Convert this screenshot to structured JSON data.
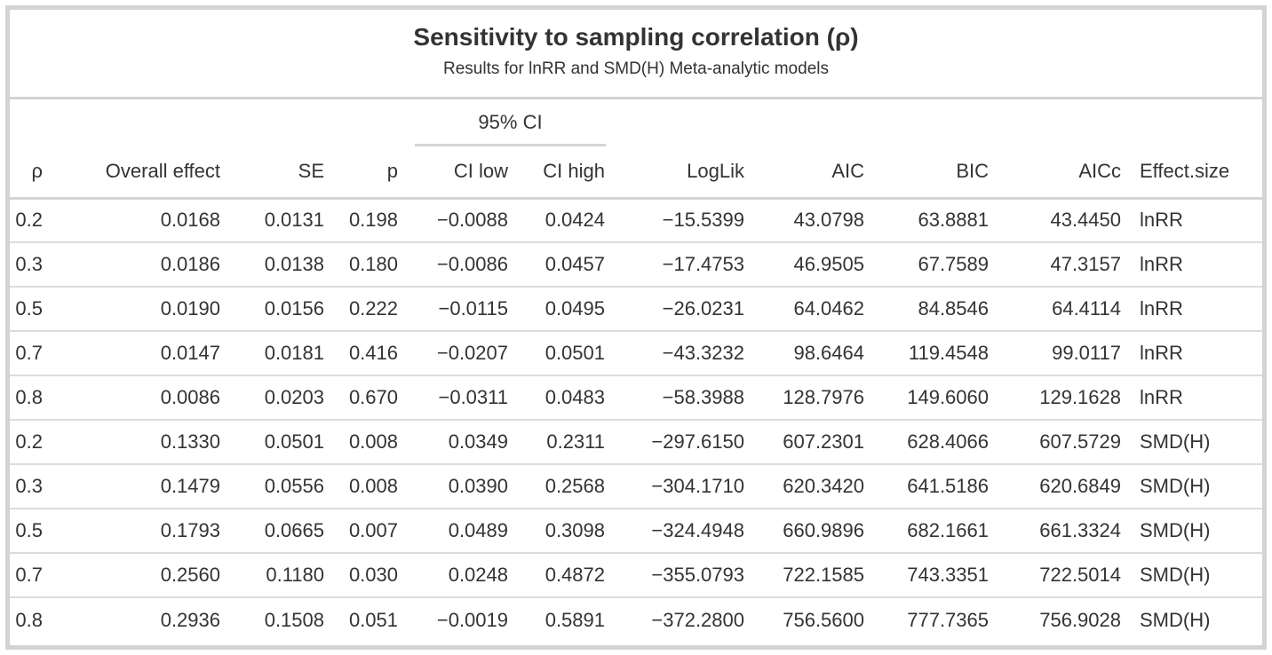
{
  "chart_data": {
    "type": "table",
    "title": "Sensitivity to sampling correlation (ρ)",
    "subtitle": "Results for lnRR and SMD(H) Meta-analytic models",
    "spanner": {
      "label": "95% CI",
      "over_columns": [
        "CI low",
        "CI high"
      ]
    },
    "columns": [
      "ρ",
      "Overall effect",
      "SE",
      "p",
      "CI low",
      "CI high",
      "LogLik",
      "AIC",
      "BIC",
      "AICc",
      "Effect.size"
    ],
    "column_keys": [
      "rho",
      "overall-effect",
      "se",
      "p",
      "ci-low",
      "ci-high",
      "loglik",
      "aic",
      "bic",
      "aicc",
      "effect-size"
    ],
    "rows": [
      [
        "0.2",
        "0.0168",
        "0.0131",
        "0.198",
        "−0.0088",
        "0.0424",
        "−15.5399",
        "43.0798",
        "63.8881",
        "43.4450",
        "lnRR"
      ],
      [
        "0.3",
        "0.0186",
        "0.0138",
        "0.180",
        "−0.0086",
        "0.0457",
        "−17.4753",
        "46.9505",
        "67.7589",
        "47.3157",
        "lnRR"
      ],
      [
        "0.5",
        "0.0190",
        "0.0156",
        "0.222",
        "−0.0115",
        "0.0495",
        "−26.0231",
        "64.0462",
        "84.8546",
        "64.4114",
        "lnRR"
      ],
      [
        "0.7",
        "0.0147",
        "0.0181",
        "0.416",
        "−0.0207",
        "0.0501",
        "−43.3232",
        "98.6464",
        "119.4548",
        "99.0117",
        "lnRR"
      ],
      [
        "0.8",
        "0.0086",
        "0.0203",
        "0.670",
        "−0.0311",
        "0.0483",
        "−58.3988",
        "128.7976",
        "149.6060",
        "129.1628",
        "lnRR"
      ],
      [
        "0.2",
        "0.1330",
        "0.0501",
        "0.008",
        "0.0349",
        "0.2311",
        "−297.6150",
        "607.2301",
        "628.4066",
        "607.5729",
        "SMD(H)"
      ],
      [
        "0.3",
        "0.1479",
        "0.0556",
        "0.008",
        "0.0390",
        "0.2568",
        "−304.1710",
        "620.3420",
        "641.5186",
        "620.6849",
        "SMD(H)"
      ],
      [
        "0.5",
        "0.1793",
        "0.0665",
        "0.007",
        "0.0489",
        "0.3098",
        "−324.4948",
        "660.9896",
        "682.1661",
        "661.3324",
        "SMD(H)"
      ],
      [
        "0.7",
        "0.2560",
        "0.1180",
        "0.030",
        "0.0248",
        "0.4872",
        "−355.0793",
        "722.1585",
        "743.3351",
        "722.5014",
        "SMD(H)"
      ],
      [
        "0.8",
        "0.2936",
        "0.1508",
        "0.051",
        "−0.0019",
        "0.5891",
        "−372.2800",
        "756.5600",
        "777.7365",
        "756.9028",
        "SMD(H)"
      ]
    ],
    "layout_hints": {
      "numeric_alignment": "right",
      "effect_size_alignment": "left",
      "gridlines": "horizontal-only"
    }
  },
  "colors": {
    "text": "#333333",
    "outer_border": "#d3d3d3",
    "section_divider": "#d3d3d3",
    "row_divider": "#dcdcdc",
    "background": "#ffffff"
  }
}
